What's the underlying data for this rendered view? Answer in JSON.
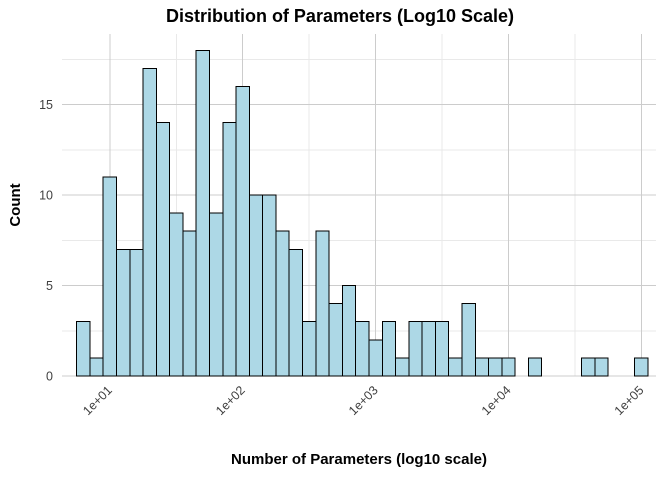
{
  "chart_data": {
    "type": "bar",
    "chart_kind": "histogram",
    "title": "Distribution of Parameters (Log10 Scale)",
    "xlabel": "Number of Parameters (log10 scale)",
    "ylabel": "Count",
    "x_scale": "log10",
    "x_tick_labels": [
      "1e+01",
      "1e+02",
      "1e+03",
      "1e+04",
      "1e+05"
    ],
    "x_tick_log10": [
      1,
      2,
      3,
      4,
      5
    ],
    "x_minor_log10": [
      1.5,
      2.5,
      3.5,
      4.5
    ],
    "y_ticks": [
      0,
      5,
      10,
      15
    ],
    "y_minor": [
      2.5,
      7.5,
      12.5,
      17.5
    ],
    "y_axis_range": [
      0,
      18.9
    ],
    "x_domain_log10": [
      0.64,
      5.11
    ],
    "grid": "major+minor",
    "legend": "none",
    "bins": {
      "log10_start": 0.75,
      "log10_bin_width": 0.1,
      "counts": [
        3,
        1,
        11,
        7,
        7,
        17,
        14,
        9,
        8,
        18,
        9,
        14,
        16,
        10,
        10,
        8,
        7,
        3,
        8,
        4,
        5,
        3,
        2,
        3,
        1,
        3,
        3,
        3,
        1,
        4,
        1,
        1,
        1,
        0,
        1,
        0,
        0,
        0,
        1,
        1,
        0,
        0,
        1
      ]
    },
    "colors": {
      "bar_fill": "#ADD8E6",
      "bar_stroke": "#000000",
      "grid_major": "#cccccc",
      "grid_minor": "#e9e9e9",
      "tick_label": "#404040",
      "text": "#000000",
      "background": "#ffffff"
    }
  }
}
